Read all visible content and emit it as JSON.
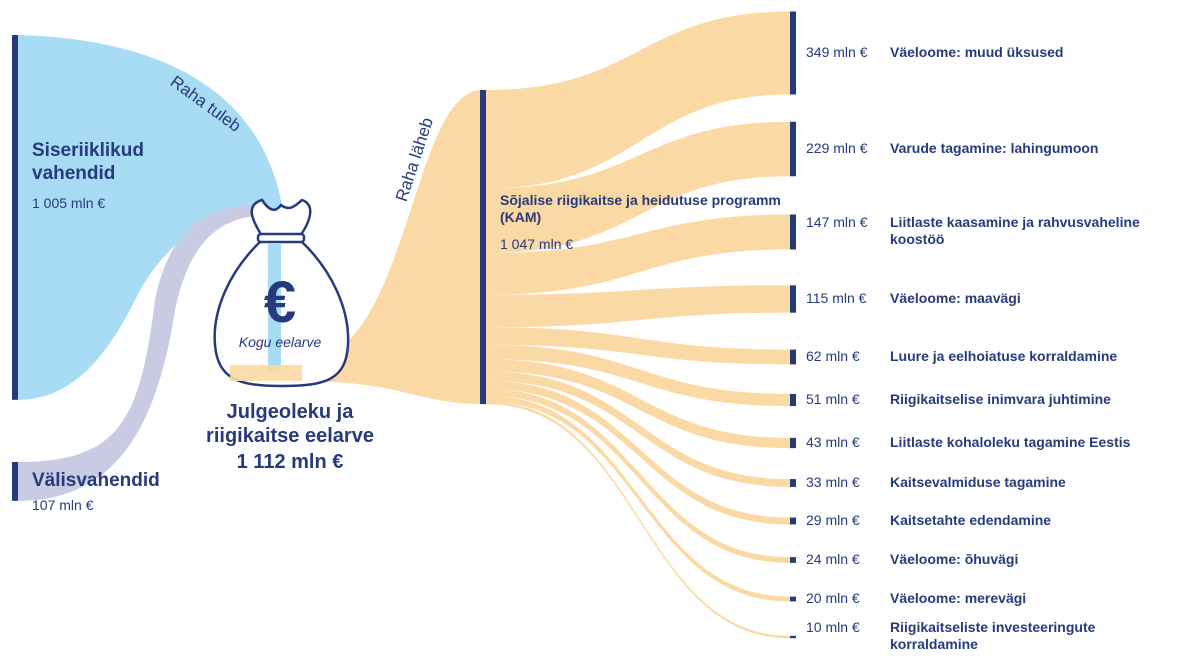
{
  "chart_data": {
    "type": "sankey",
    "annotations": [
      "Raha tuleb",
      "Raha läheb"
    ],
    "sources": [
      {
        "name": "Siseriiklikud vahendid",
        "value": 1005,
        "value_label": "1 005 mln €",
        "color": "#a8dcf4"
      },
      {
        "name": "Välisvahendid",
        "value": 107,
        "value_label": "107 mln €",
        "color": "#c9cbe3"
      }
    ],
    "total": {
      "symbol": "€",
      "icon_label": "Kogu eelarve",
      "name": "Julgeoleku ja riigikaitse eelarve",
      "value": 1112,
      "value_label": "1 112 mln €"
    },
    "program": {
      "name": "Sõjalise riigikaitse ja heidutuse programm (KAM)",
      "value": 1047,
      "value_label": "1 047 mln €"
    },
    "flow_color": "#fbd9a5",
    "node_color": "#263a7c",
    "targets": [
      {
        "name": "Väeloome: muud üksused",
        "value": 349,
        "value_label": "349 mln €"
      },
      {
        "name": "Varude tagamine: lahingumoon",
        "value": 229,
        "value_label": "229 mln €"
      },
      {
        "name": "Liitlaste kaasamine ja rahvusvaheline koostöö",
        "value": 147,
        "value_label": "147 mln €"
      },
      {
        "name": "Väeloome: maavägi",
        "value": 115,
        "value_label": "115 mln €"
      },
      {
        "name": "Luure ja eelhoiatuse korraldamine",
        "value": 62,
        "value_label": "62 mln €"
      },
      {
        "name": "Riigikaitselise inimvara juhtimine",
        "value": 51,
        "value_label": "51 mln €"
      },
      {
        "name": "Liitlaste kohaloleku tagamine Eestis",
        "value": 43,
        "value_label": "43 mln €"
      },
      {
        "name": "Kaitsevalmiduse tagamine",
        "value": 33,
        "value_label": "33 mln €"
      },
      {
        "name": "Kaitsetahte edendamine",
        "value": 29,
        "value_label": "29 mln €"
      },
      {
        "name": "Väeloome: õhuvägi",
        "value": 24,
        "value_label": "24 mln €"
      },
      {
        "name": "Väeloome: merevägi",
        "value": 20,
        "value_label": "20 mln €"
      },
      {
        "name": "Riigikaitseliste investeeringute korraldamine",
        "value": 10,
        "value_label": "10 mln €"
      }
    ]
  }
}
